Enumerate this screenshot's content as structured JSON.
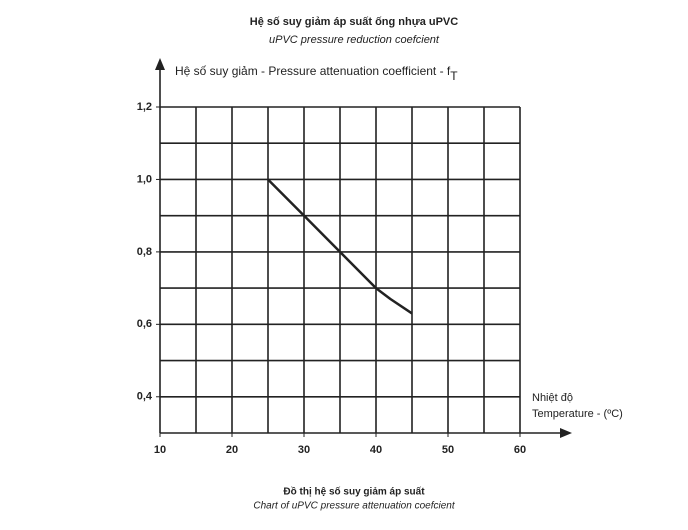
{
  "chart_data": {
    "type": "line",
    "title": "Hệ số suy giảm áp suất ống nhựa uPVC",
    "subtitle": "uPVC pressure reduction coefcient",
    "y_label": "Hệ số suy giảm - Pressure attenuation coefficient - f",
    "y_label_sub": "T",
    "x_label": [
      "Nhiệt độ",
      "Temperature - (ºC)"
    ],
    "caption": "Đồ thị hệ số suy giảm áp suất",
    "caption_sub": "Chart of uPVC pressure attenuation coefcient",
    "x": [
      25,
      30,
      35,
      40,
      42,
      45
    ],
    "values": [
      1.0,
      0.9,
      0.8,
      0.7,
      0.67,
      0.63
    ],
    "color": "#222222",
    "xlim": [
      10,
      60
    ],
    "ylim": [
      0.3,
      1.2
    ],
    "xticks": [
      10,
      20,
      30,
      40,
      50,
      60
    ],
    "yticks": [
      {
        "value": 0.4,
        "label": "0,4"
      },
      {
        "value": 0.6,
        "label": "0,6"
      },
      {
        "value": 0.8,
        "label": "0,8"
      },
      {
        "value": 1.0,
        "label": "1,0"
      },
      {
        "value": 1.2,
        "label": "1,2"
      }
    ],
    "xgrid": [
      15,
      20,
      25,
      30,
      35,
      40,
      45,
      50,
      55,
      60
    ],
    "ygrid": [
      0.4,
      0.5,
      0.6,
      0.7,
      0.8,
      0.9,
      1.0,
      1.1,
      1.2
    ],
    "grid": true
  }
}
